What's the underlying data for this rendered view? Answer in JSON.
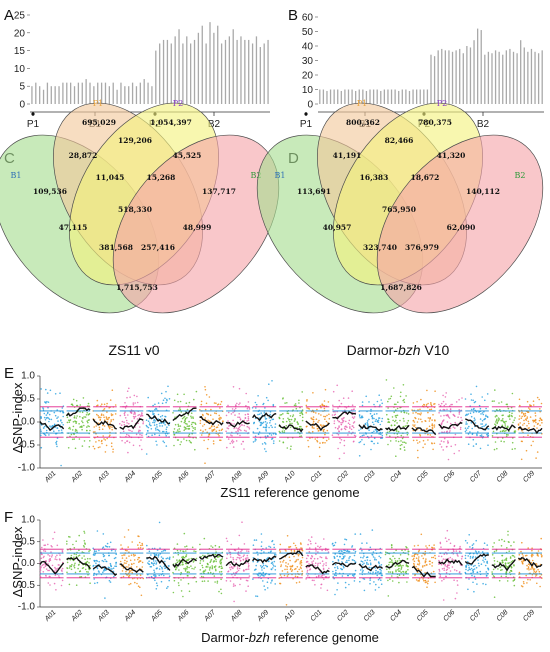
{
  "chart_data": [
    {
      "panel": "A",
      "type": "bar",
      "markers": [
        "P1",
        "B1",
        "P2",
        "B2"
      ],
      "yticks": [
        0,
        5,
        10,
        15,
        20,
        25
      ],
      "ylim": [
        0,
        25
      ],
      "values": [
        5,
        6,
        5,
        4,
        6,
        5,
        5,
        5,
        6,
        6,
        6,
        5,
        6,
        6,
        7,
        6,
        5,
        6,
        6,
        6,
        5,
        6,
        4,
        6,
        5,
        5,
        6,
        5,
        6,
        7,
        6,
        5,
        15,
        17,
        18,
        18,
        17,
        19,
        21,
        17,
        19,
        17,
        18,
        20,
        22,
        17,
        23,
        20,
        22,
        17,
        18,
        19,
        21,
        18,
        19,
        18,
        18,
        17,
        19,
        16,
        17,
        18
      ]
    },
    {
      "panel": "B",
      "type": "bar",
      "markers": [
        "P1",
        "B1",
        "P2",
        "B2"
      ],
      "yticks": [
        0,
        10,
        20,
        30,
        40,
        50,
        60
      ],
      "ylim": [
        0,
        60
      ],
      "values": [
        10,
        10,
        9,
        10,
        10,
        10,
        9,
        10,
        10,
        10,
        9,
        10,
        10,
        9,
        10,
        10,
        10,
        9,
        10,
        10,
        10,
        10,
        9,
        10,
        10,
        9,
        10,
        10,
        10,
        10,
        10,
        34,
        33,
        37,
        38,
        37,
        37,
        36,
        37,
        38,
        35,
        40,
        39,
        44,
        52,
        51,
        34,
        36,
        35,
        37,
        36,
        34,
        37,
        38,
        36,
        35,
        44,
        39,
        36,
        38,
        36,
        35,
        37
      ]
    },
    {
      "panel": "C",
      "type": "venn",
      "sets": [
        "B1",
        "P1",
        "P2",
        "B2"
      ],
      "set_colors": [
        "#2e6fb5",
        "#e8a23a",
        "#8a3fc4",
        "#2f9a3a"
      ],
      "regions": {
        "B1": "109,536",
        "P1": "695,029",
        "P2": "1,054,397",
        "B2": "137,717",
        "B1_P1": "28,872",
        "P1_P2": "129,206",
        "P2_B2": "45,525",
        "B1_P1_P2": "11,045",
        "P1_P2_B2": "15,268",
        "all": "518,330",
        "B1_P2": "47,115",
        "P1_B2": "48,999",
        "B1_P2_B2": "381,568",
        "B1_P1_B2": "257,416",
        "B1_B2": "1,715,753"
      },
      "caption": "ZS11 v0"
    },
    {
      "panel": "D",
      "type": "venn",
      "sets": [
        "B1",
        "P1",
        "P2",
        "B2"
      ],
      "set_colors": [
        "#2e6fb5",
        "#e8a23a",
        "#8a3fc4",
        "#2f9a3a"
      ],
      "regions": {
        "B1": "113,691",
        "P1": "800,362",
        "P2": "780,375",
        "B2": "140,112",
        "B1_P1": "41,191",
        "P1_P2": "82,466",
        "P2_B2": "41,320",
        "B1_P1_P2": "16,383",
        "P1_P2_B2": "18,672",
        "all": "765,950",
        "B1_P2": "40,957",
        "P1_B2": "62,090",
        "B1_P2_B2": "323,740",
        "B1_P1_B2": "376,979",
        "B1_B2": "1,687,826"
      },
      "caption_prefix": "Darmor-",
      "caption_italic": "bzh",
      "caption_suffix": " V10"
    },
    {
      "panel": "E",
      "type": "scatter",
      "ylabel": "ΔSNP-index",
      "yticks": [
        "1.0",
        "0.5",
        "0.0",
        "-0.5",
        "-1.0"
      ],
      "ylim": [
        -1.0,
        1.0
      ],
      "chromosomes": [
        "A01",
        "A02",
        "A03",
        "A04",
        "A05",
        "A06",
        "A07",
        "A08",
        "A09",
        "A10",
        "C01",
        "C02",
        "C03",
        "C04",
        "C05",
        "C06",
        "C07",
        "C08",
        "C09"
      ],
      "chromosome_colors": [
        "#2ea3e0",
        "#6abf3a",
        "#f0901e",
        "#e86ab4",
        "#2ea3e0",
        "#6abf3a",
        "#f0901e",
        "#e86ab4",
        "#2ea3e0",
        "#6abf3a",
        "#f0901e",
        "#e86ab4",
        "#2ea3e0",
        "#6abf3a",
        "#f0901e",
        "#e86ab4",
        "#2ea3e0",
        "#6abf3a",
        "#f0901e"
      ],
      "xlabel": "ZS11 reference genome"
    },
    {
      "panel": "F",
      "type": "scatter",
      "ylabel": "ΔSNP-index",
      "yticks": [
        "1.0",
        "0.5",
        "0.0",
        "-0.5",
        "-1.0"
      ],
      "ylim": [
        -1.0,
        1.0
      ],
      "chromosomes": [
        "A01",
        "A02",
        "A03",
        "A04",
        "A05",
        "A06",
        "A07",
        "A08",
        "A09",
        "A10",
        "C01",
        "C02",
        "C03",
        "C04",
        "C05",
        "C06",
        "C07",
        "C08",
        "C09"
      ],
      "chromosome_colors": [
        "#e86ab4",
        "#6abf3a",
        "#2ea3e0",
        "#f0901e",
        "#2ea3e0",
        "#6abf3a",
        "#6abf3a",
        "#e86ab4",
        "#2ea3e0",
        "#f0901e",
        "#e86ab4",
        "#2ea3e0",
        "#2ea3e0",
        "#6abf3a",
        "#f0901e",
        "#e86ab4",
        "#2ea3e0",
        "#6abf3a",
        "#f0901e"
      ],
      "xlabel_prefix": "Darmor-",
      "xlabel_italic": "bzh",
      "xlabel_suffix": " reference genome"
    }
  ],
  "colors": {
    "bar": "#a9a9a9",
    "venn_B1": "#a6dd90",
    "venn_P1": "#f2c89b",
    "venn_P2": "#f4f27e",
    "venn_B2": "#f6a4aa",
    "threshold_99": "#e0208a",
    "threshold_95": "#1a8ed6",
    "trend": "#111111"
  }
}
